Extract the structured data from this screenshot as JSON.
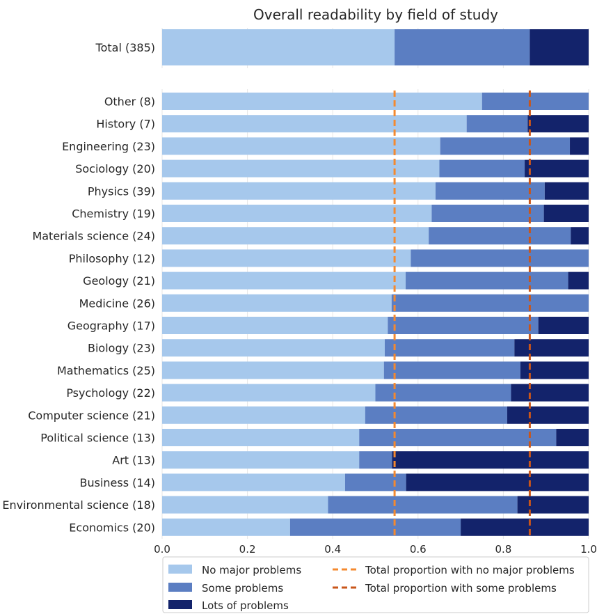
{
  "chart_data": {
    "type": "bar",
    "orientation": "horizontal",
    "stacked": true,
    "title": "Overall readability by field of study",
    "xlim": [
      0,
      1
    ],
    "xticks": [
      "0.0",
      "0.2",
      "0.4",
      "0.6",
      "0.8",
      "1.0"
    ],
    "grid": "vertical",
    "legend_position": "bottom",
    "total": {
      "category": "Total (385)",
      "values": [
        0.545,
        0.317,
        0.138
      ]
    },
    "categories": [
      "Other (8)",
      "History (7)",
      "Engineering (23)",
      "Sociology (20)",
      "Physics (39)",
      "Chemistry (19)",
      "Materials science (24)",
      "Philosophy (12)",
      "Geology (21)",
      "Medicine (26)",
      "Geography (17)",
      "Biology (23)",
      "Mathematics (25)",
      "Psychology (22)",
      "Computer science (21)",
      "Political science (13)",
      "Art (13)",
      "Business (14)",
      "Environmental science (18)",
      "Economics (20)"
    ],
    "series": [
      {
        "name": "No major problems",
        "color": "#a6c8ec",
        "values": [
          0.75,
          0.714,
          0.652,
          0.65,
          0.641,
          0.632,
          0.625,
          0.583,
          0.571,
          0.538,
          0.529,
          0.522,
          0.52,
          0.5,
          0.476,
          0.462,
          0.462,
          0.429,
          0.389,
          0.3
        ]
      },
      {
        "name": "Some problems",
        "color": "#5b7ec2",
        "values": [
          0.25,
          0.143,
          0.304,
          0.2,
          0.256,
          0.263,
          0.333,
          0.417,
          0.381,
          0.462,
          0.353,
          0.304,
          0.32,
          0.318,
          0.333,
          0.462,
          0.077,
          0.143,
          0.444,
          0.4
        ]
      },
      {
        "name": "Lots of problems",
        "color": "#13236b",
        "values": [
          0.0,
          0.143,
          0.044,
          0.15,
          0.103,
          0.105,
          0.042,
          0.0,
          0.048,
          0.0,
          0.118,
          0.174,
          0.16,
          0.182,
          0.191,
          0.076,
          0.461,
          0.428,
          0.167,
          0.3
        ]
      }
    ],
    "reference_lines": [
      {
        "name": "Total proportion with no major problems",
        "value": 0.545,
        "color": "#f4892f",
        "style": "dashed"
      },
      {
        "name": "Total proportion with some problems",
        "value": 0.862,
        "color": "#c9561a",
        "style": "dashed"
      }
    ]
  }
}
